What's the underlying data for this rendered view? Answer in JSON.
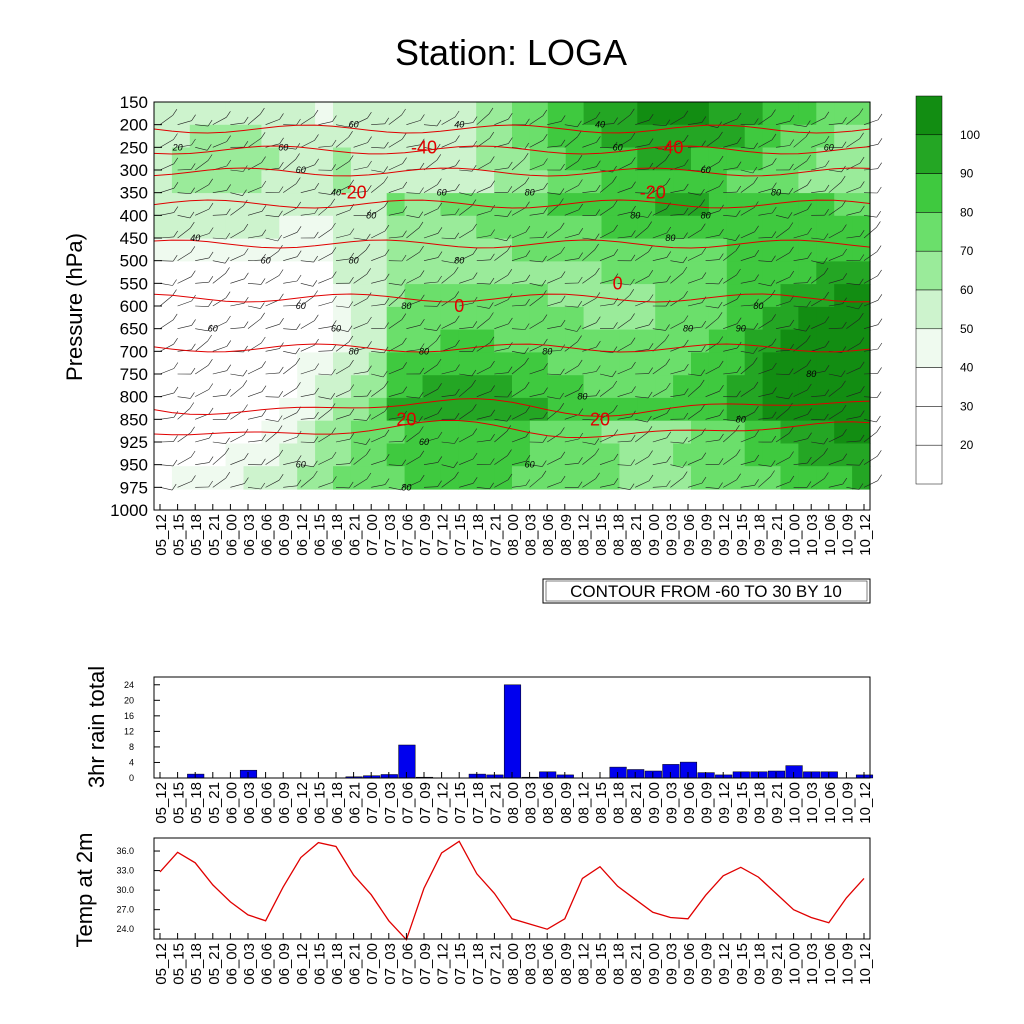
{
  "page_title": "Station: LOGA",
  "colors": {
    "greens": [
      "#ffffff",
      "#ffffff",
      "#ffffff",
      "#effaef",
      "#cdf3cd",
      "#9aeb9a",
      "#6bdf6b",
      "#3fc93f",
      "#24a624",
      "#128d12"
    ],
    "temp_contour": "#e00000",
    "rain_bar": "#0000ee",
    "temp_line": "#e00000"
  },
  "chart_data": [
    {
      "type": "heatmap",
      "title": "Station: LOGA",
      "ylabel": "Pressure (hPa)",
      "y_ticks": [
        "150",
        "200",
        "250",
        "300",
        "350",
        "400",
        "450",
        "500",
        "550",
        "600",
        "650",
        "700",
        "750",
        "800",
        "850",
        "925",
        "950",
        "975",
        "1000"
      ],
      "x_ticks": [
        "05_12",
        "05_15",
        "05_18",
        "05_21",
        "06_00",
        "06_03",
        "06_06",
        "06_09",
        "06_12",
        "06_15",
        "06_18",
        "06_21",
        "07_00",
        "07_03",
        "07_06",
        "07_09",
        "07_12",
        "07_15",
        "07_18",
        "07_21",
        "08_00",
        "08_03",
        "08_06",
        "08_09",
        "08_12",
        "08_15",
        "08_18",
        "08_21",
        "09_00",
        "09_03",
        "09_06",
        "09_09",
        "09_12",
        "09_15",
        "09_18",
        "09_21",
        "10_00",
        "10_03",
        "10_06",
        "10_09",
        "10_12"
      ],
      "colorbar_labels": [
        "20",
        "30",
        "40",
        "50",
        "60",
        "70",
        "80",
        "90",
        "100"
      ],
      "contour_note": "CONTOUR FROM -60 TO 30 BY 10",
      "temperature_contour_labels": [
        {
          "text": "-40",
          "x": "07_09",
          "y": "250"
        },
        {
          "text": "-40",
          "x": "09_03",
          "y": "250"
        },
        {
          "text": "-20",
          "x": "06_21",
          "y": "350"
        },
        {
          "text": "-20",
          "x": "09_00",
          "y": "350"
        },
        {
          "text": "0",
          "x": "07_15",
          "y": "600"
        },
        {
          "text": "0",
          "x": "08_18",
          "y": "550"
        },
        {
          "text": "20",
          "x": "07_06",
          "y": "850"
        },
        {
          "text": "20",
          "x": "08_15",
          "y": "850"
        }
      ],
      "rh_contour_labels": [
        {
          "text": "20",
          "x": "05_15",
          "y": "250"
        },
        {
          "text": "60",
          "x": "06_09",
          "y": "250"
        },
        {
          "text": "60",
          "x": "06_21",
          "y": "200"
        },
        {
          "text": "40",
          "x": "07_15",
          "y": "200"
        },
        {
          "text": "40",
          "x": "08_15",
          "y": "200"
        },
        {
          "text": "60",
          "x": "08_18",
          "y": "250"
        },
        {
          "text": "60",
          "x": "10_06",
          "y": "250"
        },
        {
          "text": "60",
          "x": "06_12",
          "y": "300"
        },
        {
          "text": "60",
          "x": "09_09",
          "y": "300"
        },
        {
          "text": "40",
          "x": "06_18",
          "y": "350"
        },
        {
          "text": "60",
          "x": "07_12",
          "y": "350"
        },
        {
          "text": "80",
          "x": "08_03",
          "y": "350"
        },
        {
          "text": "80",
          "x": "09_21",
          "y": "350"
        },
        {
          "text": "80",
          "x": "07_00",
          "y": "400"
        },
        {
          "text": "80",
          "x": "08_21",
          "y": "400"
        },
        {
          "text": "80",
          "x": "09_09",
          "y": "400"
        },
        {
          "text": "40",
          "x": "05_18",
          "y": "450"
        },
        {
          "text": "80",
          "x": "09_03",
          "y": "450"
        },
        {
          "text": "60",
          "x": "06_06",
          "y": "500"
        },
        {
          "text": "80",
          "x": "06_21",
          "y": "500"
        },
        {
          "text": "80",
          "x": "07_15",
          "y": "500"
        },
        {
          "text": "80",
          "x": "09_18",
          "y": "600"
        },
        {
          "text": "60",
          "x": "06_12",
          "y": "600"
        },
        {
          "text": "80",
          "x": "07_06",
          "y": "600"
        },
        {
          "text": "60",
          "x": "05_21",
          "y": "650"
        },
        {
          "text": "60",
          "x": "06_18",
          "y": "650"
        },
        {
          "text": "80",
          "x": "06_21",
          "y": "700"
        },
        {
          "text": "80",
          "x": "07_09",
          "y": "700"
        },
        {
          "text": "80",
          "x": "08_06",
          "y": "700"
        },
        {
          "text": "80",
          "x": "09_06",
          "y": "650"
        },
        {
          "text": "90",
          "x": "09_15",
          "y": "650"
        },
        {
          "text": "80",
          "x": "10_03",
          "y": "750"
        },
        {
          "text": "80",
          "x": "08_12",
          "y": "800"
        },
        {
          "text": "80",
          "x": "09_15",
          "y": "850"
        },
        {
          "text": "60",
          "x": "07_09",
          "y": "925"
        },
        {
          "text": "60",
          "x": "06_12",
          "y": "950"
        },
        {
          "text": "80",
          "x": "07_06",
          "y": "975"
        },
        {
          "text": "60",
          "x": "08_03",
          "y": "950"
        }
      ]
    },
    {
      "type": "bar",
      "ylabel": "3hr rain total",
      "ylim": [
        0,
        26
      ],
      "y_ticks": [
        "0",
        "4",
        "8",
        "12",
        "16",
        "20",
        "24"
      ],
      "categories": [
        "05_12",
        "05_15",
        "05_18",
        "05_21",
        "06_00",
        "06_03",
        "06_06",
        "06_09",
        "06_12",
        "06_15",
        "06_18",
        "06_21",
        "07_00",
        "07_03",
        "07_06",
        "07_09",
        "07_12",
        "07_15",
        "07_18",
        "07_21",
        "08_00",
        "08_03",
        "08_06",
        "08_09",
        "08_12",
        "08_15",
        "08_18",
        "08_21",
        "09_00",
        "09_03",
        "09_06",
        "09_09",
        "09_12",
        "09_15",
        "09_18",
        "09_21",
        "10_00",
        "10_03",
        "10_06",
        "10_09",
        "10_12"
      ],
      "values": [
        0,
        0,
        1,
        0,
        0,
        2,
        0,
        0,
        0,
        0,
        0,
        0.3,
        0.6,
        0.9,
        8.5,
        0.2,
        0,
        0,
        1,
        0.8,
        24,
        0.2,
        1.6,
        0.8,
        0,
        0,
        2.8,
        2.2,
        1.8,
        3.5,
        4.1,
        1.4,
        0.8,
        1.6,
        1.6,
        1.8,
        3.2,
        1.6,
        1.6,
        0,
        0.8
      ]
    },
    {
      "type": "line",
      "ylabel": "Temp at 2m",
      "ylim": [
        22.5,
        38
      ],
      "y_ticks": [
        "24.0",
        "27.0",
        "30.0",
        "33.0",
        "36.0"
      ],
      "categories": [
        "05_12",
        "05_15",
        "05_18",
        "05_21",
        "06_00",
        "06_03",
        "06_06",
        "06_09",
        "06_12",
        "06_15",
        "06_18",
        "06_21",
        "07_00",
        "07_03",
        "07_06",
        "07_09",
        "07_12",
        "07_15",
        "07_18",
        "07_21",
        "08_00",
        "08_03",
        "08_06",
        "08_09",
        "08_12",
        "08_15",
        "08_18",
        "08_21",
        "09_00",
        "09_03",
        "09_06",
        "09_09",
        "09_12",
        "09_15",
        "09_18",
        "09_21",
        "10_00",
        "10_03",
        "10_06",
        "10_09",
        "10_12"
      ],
      "values": [
        32.8,
        35.8,
        34.2,
        30.8,
        28.2,
        26.2,
        25.3,
        30.5,
        35.0,
        37.3,
        36.7,
        32.3,
        29.3,
        25.3,
        22.4,
        30.3,
        35.7,
        37.5,
        32.5,
        29.5,
        25.6,
        24.8,
        24.0,
        25.6,
        31.8,
        33.6,
        30.6,
        28.6,
        26.6,
        25.8,
        25.6,
        29.2,
        32.2,
        33.5,
        32.0,
        29.5,
        27.0,
        25.8,
        25.0,
        28.8,
        31.8
      ]
    }
  ]
}
